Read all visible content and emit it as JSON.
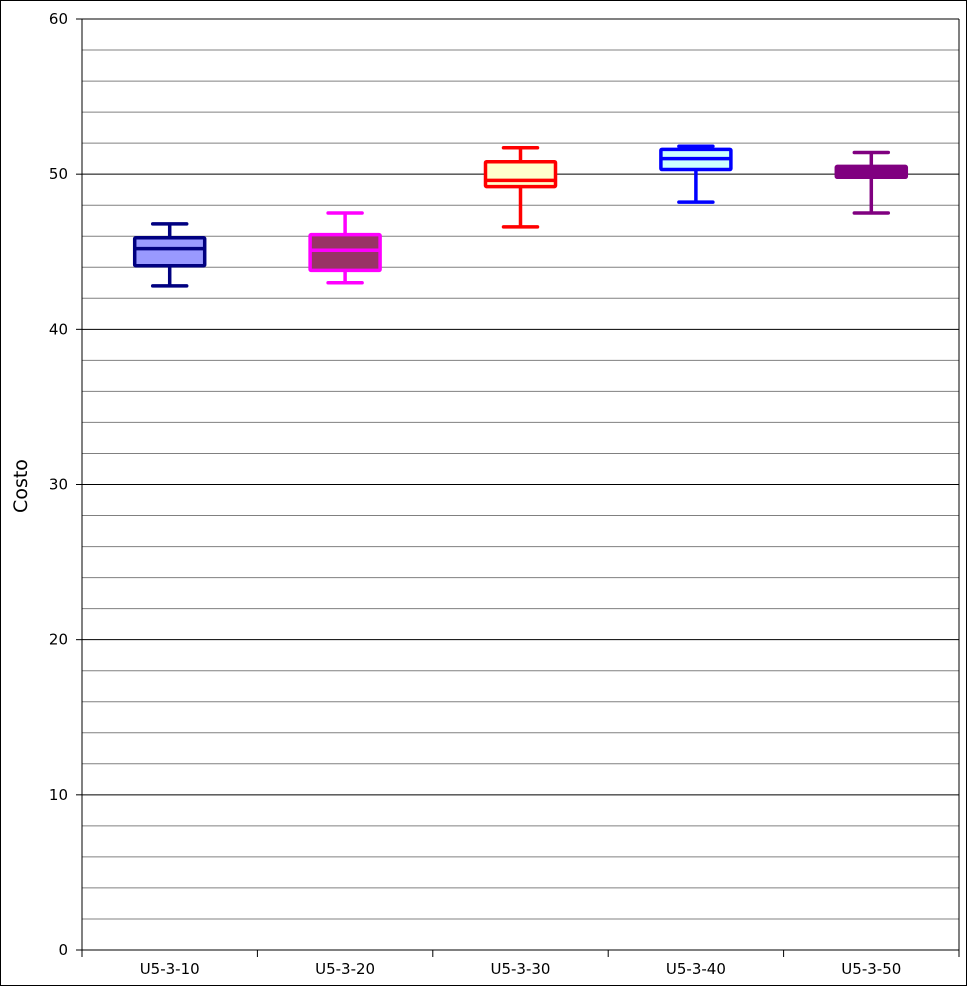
{
  "chart_data": {
    "type": "boxplot",
    "ylabel": "Costo",
    "ylim": [
      0,
      60
    ],
    "y_major_ticks": [
      0,
      10,
      20,
      30,
      40,
      50,
      60
    ],
    "y_minor_step": 2,
    "grid": true,
    "categories": [
      "U5-3-10",
      "U5-3-20",
      "U5-3-30",
      "U5-3-40",
      "U5-3-50"
    ],
    "boxes": [
      {
        "category": "U5-3-10",
        "min": 42.8,
        "q1": 44.1,
        "median": 45.2,
        "q3": 45.9,
        "max": 46.8,
        "stroke": "#000080",
        "fill": "#9999ff"
      },
      {
        "category": "U5-3-20",
        "min": 43.0,
        "q1": 43.8,
        "median": 45.1,
        "q3": 46.1,
        "max": 47.5,
        "stroke": "#ff00ff",
        "fill": "#993366"
      },
      {
        "category": "U5-3-30",
        "min": 46.6,
        "q1": 49.2,
        "median": 49.6,
        "q3": 50.8,
        "max": 51.7,
        "stroke": "#ff0000",
        "fill": "#ffffcc"
      },
      {
        "category": "U5-3-40",
        "min": 48.2,
        "q1": 50.3,
        "median": 51.0,
        "q3": 51.6,
        "max": 51.8,
        "stroke": "#0000ff",
        "fill": "#ccffff"
      },
      {
        "category": "U5-3-50",
        "min": 47.5,
        "q1": 49.8,
        "median": 50.1,
        "q3": 50.5,
        "max": 51.4,
        "stroke": "#800080",
        "fill": "#800080"
      }
    ]
  }
}
